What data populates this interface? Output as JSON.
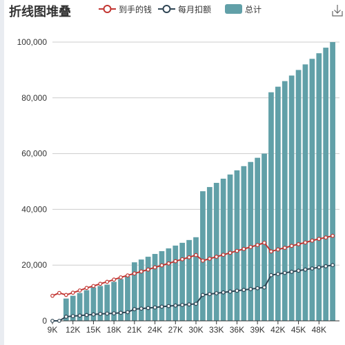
{
  "chart_data": {
    "type": "bar",
    "title": "折线图堆叠",
    "legend": [
      {
        "name": "到手的钱",
        "type": "line",
        "color": "#c23531"
      },
      {
        "name": "每月扣额",
        "type": "line",
        "color": "#2f4554"
      },
      {
        "name": "总计",
        "type": "bar",
        "color": "#61a0a8"
      }
    ],
    "legend_position": "top",
    "x_tick_labels": [
      "9K",
      "12K",
      "15K",
      "18K",
      "21K",
      "24K",
      "27K",
      "30K",
      "33K",
      "36K",
      "39K",
      "42K",
      "45K",
      "48K"
    ],
    "x": [
      9000,
      10000,
      11000,
      12000,
      13000,
      14000,
      15000,
      16000,
      17000,
      18000,
      19000,
      20000,
      21000,
      22000,
      23000,
      24000,
      25000,
      26000,
      27000,
      28000,
      29000,
      30000,
      31000,
      32000,
      33000,
      34000,
      35000,
      36000,
      37000,
      38000,
      39000,
      40000,
      41000,
      42000,
      43000,
      44000,
      45000,
      46000,
      47000,
      48000,
      49000,
      50000
    ],
    "y_ticks": [
      "0",
      "20,000",
      "40,000",
      "60,000",
      "80,000",
      "100,000"
    ],
    "ylim": [
      0,
      100000
    ],
    "grid": true,
    "series": [
      {
        "name": "到手的钱",
        "type": "line",
        "values": [
          9000,
          10000,
          9300,
          10100,
          10900,
          11800,
          12500,
          13300,
          14000,
          14800,
          15600,
          16300,
          17000,
          17700,
          18400,
          19200,
          19900,
          20600,
          21400,
          22100,
          22800,
          23600,
          21600,
          22300,
          23000,
          23700,
          24400,
          25100,
          25800,
          26500,
          27200,
          28000,
          24900,
          25600,
          26200,
          26900,
          27500,
          28100,
          28800,
          29400,
          29900,
          30500
        ]
      },
      {
        "name": "每月扣额",
        "type": "line",
        "values": [
          0,
          0,
          1500,
          1700,
          1900,
          2100,
          2300,
          2500,
          2600,
          2700,
          2900,
          3100,
          4200,
          4400,
          4600,
          4800,
          5100,
          5300,
          5500,
          5700,
          5900,
          6100,
          9300,
          9600,
          9900,
          10200,
          10500,
          10800,
          11100,
          11400,
          11700,
          12000,
          16400,
          16800,
          17200,
          17600,
          18000,
          18400,
          18800,
          19200,
          19600,
          20000
        ]
      },
      {
        "name": "总计",
        "type": "bar",
        "values": [
          0,
          0,
          8000,
          9000,
          10000,
          11000,
          12000,
          12500,
          13000,
          14000,
          15000,
          16000,
          21000,
          22000,
          23000,
          24000,
          25000,
          26000,
          27000,
          28000,
          29000,
          30000,
          46500,
          48000,
          49500,
          51000,
          52500,
          54000,
          55500,
          57000,
          58500,
          60000,
          82000,
          84000,
          86000,
          88000,
          90000,
          92000,
          94000,
          96000,
          98000,
          100000
        ]
      }
    ]
  }
}
